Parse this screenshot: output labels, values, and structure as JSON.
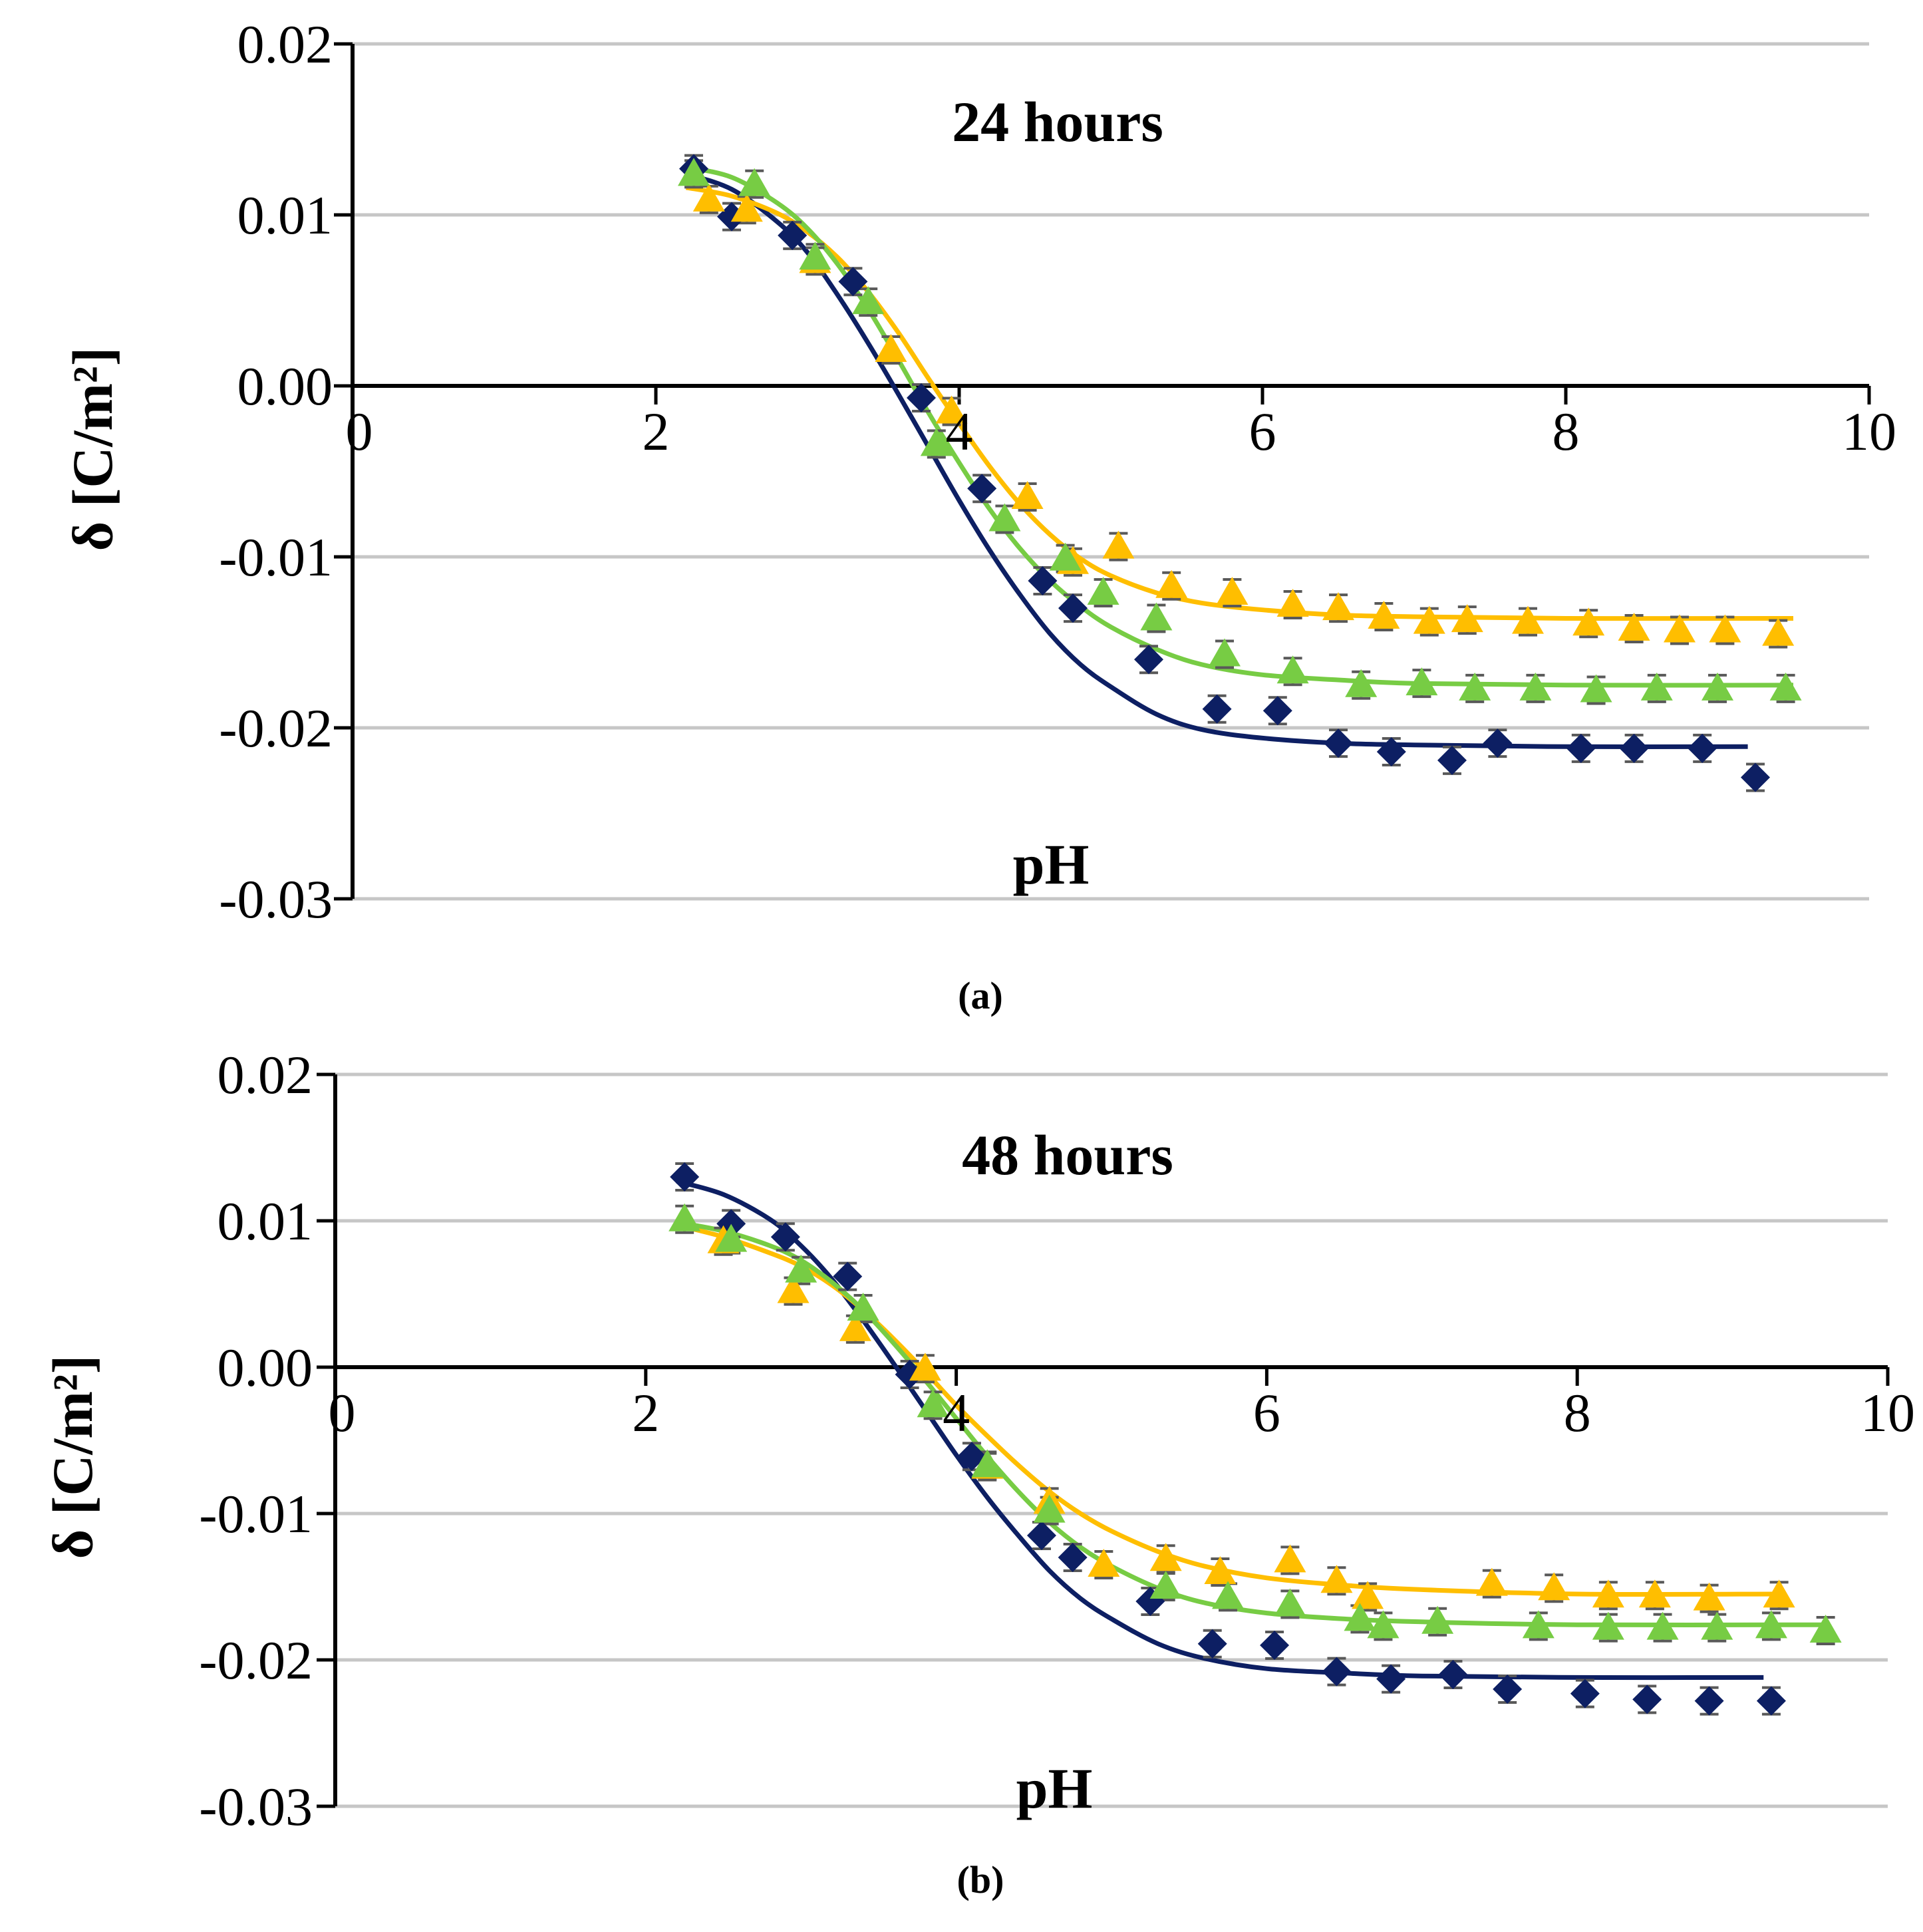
{
  "colors": {
    "series_navy": "#0d1f63",
    "series_yellow": "#ffbe00",
    "series_green": "#77cc44",
    "grid": "#c6c6c6",
    "axis": "#000000",
    "error_bar": "#595959"
  },
  "chart_data": [
    {
      "type": "scatter",
      "title": "24 hours",
      "caption": "(a)",
      "xlabel": "pH",
      "ylabel": "δ  [C/m²]",
      "xlim": [
        0,
        10
      ],
      "ylim": [
        -0.03,
        0.02
      ],
      "x_ticks": [
        0,
        2,
        4,
        6,
        8,
        10
      ],
      "x_tick_labels": [
        "0",
        "2",
        "4",
        "6",
        "8",
        "10"
      ],
      "y_ticks": [
        0.02,
        0.01,
        0,
        -0.01,
        -0.02,
        -0.03
      ],
      "y_tick_labels": [
        "0.02",
        "0.01",
        "0.00",
        "-0.01",
        "-0.02",
        "-0.03"
      ],
      "grid": true,
      "series": [
        {
          "name": "navy diamonds",
          "marker": "diamond",
          "color": "#0d1f63",
          "x": [
            2.25,
            2.5,
            2.9,
            3.3,
            3.75,
            4.15,
            4.55,
            4.75,
            5.25,
            5.7,
            6.1,
            6.5,
            6.85,
            7.25,
            7.55,
            8.1,
            8.45,
            8.9,
            9.25
          ],
          "y": [
            0.0127,
            0.0099,
            0.0088,
            0.0061,
            -0.0007,
            -0.006,
            -0.0114,
            -0.013,
            -0.016,
            -0.0189,
            -0.019,
            -0.0209,
            -0.0214,
            -0.0219,
            -0.0209,
            -0.0212,
            -0.0212,
            -0.0212,
            -0.0229
          ],
          "fit_x": [
            2.2,
            2.5,
            2.8,
            3.0,
            3.2,
            3.4,
            3.6,
            3.8,
            4.0,
            4.2,
            4.4,
            4.6,
            4.8,
            5.0,
            5.3,
            5.6,
            6.0,
            6.5,
            7.0,
            8.0,
            9.2
          ],
          "fit_y": [
            0.0124,
            0.0115,
            0.0096,
            0.0078,
            0.0053,
            0.0025,
            -0.0005,
            -0.0036,
            -0.0067,
            -0.0096,
            -0.0122,
            -0.0145,
            -0.0163,
            -0.0176,
            -0.0192,
            -0.0201,
            -0.0206,
            -0.0209,
            -0.021,
            -0.0211,
            -0.0211
          ]
        },
        {
          "name": "yellow triangles",
          "marker": "triangle",
          "color": "#ffbe00",
          "x": [
            2.35,
            2.6,
            3.05,
            3.55,
            3.95,
            4.45,
            4.75,
            5.05,
            5.4,
            5.8,
            6.2,
            6.5,
            6.8,
            7.1,
            7.35,
            7.75,
            8.15,
            8.45,
            8.75,
            9.05,
            9.4
          ],
          "y": [
            0.0109,
            0.0103,
            0.0073,
            0.0021,
            -0.0015,
            -0.0065,
            -0.0103,
            -0.0094,
            -0.0117,
            -0.0121,
            -0.0128,
            -0.013,
            -0.0135,
            -0.0138,
            -0.0137,
            -0.0138,
            -0.0139,
            -0.0142,
            -0.0143,
            -0.0143,
            -0.0145
          ],
          "fit_x": [
            2.2,
            2.5,
            2.8,
            3.0,
            3.2,
            3.4,
            3.6,
            3.8,
            4.0,
            4.2,
            4.4,
            4.6,
            4.8,
            5.0,
            5.3,
            5.6,
            6.0,
            6.5,
            7.0,
            8.0,
            9.5
          ],
          "fit_y": [
            0.0116,
            0.0111,
            0.0101,
            0.009,
            0.0075,
            0.0055,
            0.0031,
            0.0004,
            -0.0022,
            -0.0047,
            -0.0069,
            -0.0087,
            -0.0101,
            -0.0111,
            -0.0121,
            -0.0127,
            -0.0131,
            -0.0134,
            -0.0135,
            -0.0136,
            -0.0136
          ]
        },
        {
          "name": "green triangles",
          "marker": "triangle",
          "color": "#77cc44",
          "x": [
            2.25,
            2.65,
            3.05,
            3.4,
            3.85,
            4.3,
            4.7,
            4.95,
            5.3,
            5.75,
            6.2,
            6.65,
            7.05,
            7.4,
            7.8,
            8.2,
            8.6,
            9.0,
            9.45
          ],
          "y": [
            0.0124,
            0.0118,
            0.0075,
            0.0049,
            -0.0034,
            -0.0078,
            -0.0101,
            -0.0121,
            -0.0136,
            -0.0157,
            -0.0167,
            -0.0175,
            -0.0174,
            -0.0177,
            -0.0177,
            -0.0178,
            -0.0177,
            -0.0177,
            -0.0177
          ],
          "fit_x": [
            2.2,
            2.5,
            2.8,
            3.0,
            3.2,
            3.4,
            3.6,
            3.8,
            4.0,
            4.2,
            4.4,
            4.6,
            4.8,
            5.0,
            5.3,
            5.6,
            6.0,
            6.5,
            7.0,
            8.0,
            9.5
          ],
          "fit_y": [
            0.0128,
            0.0122,
            0.0107,
            0.0092,
            0.0071,
            0.0045,
            0.0015,
            -0.0016,
            -0.0045,
            -0.0072,
            -0.0095,
            -0.0114,
            -0.0129,
            -0.0141,
            -0.0154,
            -0.0163,
            -0.0169,
            -0.0172,
            -0.0174,
            -0.0175,
            -0.0175
          ]
        }
      ]
    },
    {
      "type": "scatter",
      "title": "48 hours",
      "caption": "(b)",
      "xlabel": "pH",
      "ylabel": "δ  [C/m²]",
      "xlim": [
        0,
        10
      ],
      "ylim": [
        -0.03,
        0.02
      ],
      "x_ticks": [
        0,
        2,
        4,
        6,
        8,
        10
      ],
      "x_tick_labels": [
        "0",
        "2",
        "4",
        "6",
        "8",
        "10"
      ],
      "y_ticks": [
        0.02,
        0.01,
        0,
        -0.01,
        -0.02,
        -0.03
      ],
      "y_tick_labels": [
        "0.02",
        "0.01",
        "0.00",
        "-0.01",
        "-0.02",
        "-0.03"
      ],
      "grid": true,
      "series": [
        {
          "name": "navy diamonds",
          "marker": "diamond",
          "color": "#0d1f63",
          "x": [
            2.25,
            2.55,
            2.9,
            3.3,
            3.7,
            4.1,
            4.55,
            4.75,
            5.25,
            5.65,
            6.05,
            6.45,
            6.8,
            7.2,
            7.55,
            8.05,
            8.45,
            8.85,
            9.25
          ],
          "y": [
            0.013,
            0.0098,
            0.0089,
            0.0062,
            -0.0005,
            -0.0061,
            -0.0115,
            -0.013,
            -0.016,
            -0.0189,
            -0.019,
            -0.0208,
            -0.0213,
            -0.021,
            -0.022,
            -0.0223,
            -0.0227,
            -0.0228,
            -0.0228
          ],
          "fit_x": [
            2.2,
            2.5,
            2.8,
            3.0,
            3.2,
            3.4,
            3.6,
            3.8,
            4.0,
            4.2,
            4.4,
            4.6,
            4.8,
            5.0,
            5.3,
            5.6,
            6.0,
            6.5,
            7.0,
            8.0,
            9.2
          ],
          "fit_y": [
            0.0127,
            0.0118,
            0.0101,
            0.0083,
            0.006,
            0.0032,
            0.0002,
            -0.0029,
            -0.006,
            -0.0089,
            -0.0115,
            -0.0139,
            -0.0158,
            -0.0172,
            -0.0189,
            -0.0199,
            -0.0206,
            -0.0209,
            -0.0211,
            -0.0212,
            -0.0212
          ]
        },
        {
          "name": "yellow triangles",
          "marker": "triangle",
          "color": "#ffbe00",
          "x": [
            2.5,
            2.95,
            3.35,
            3.8,
            4.2,
            4.6,
            4.95,
            5.35,
            5.7,
            6.15,
            6.45,
            6.65,
            7.45,
            7.85,
            8.2,
            8.5,
            8.85,
            9.3
          ],
          "y": [
            0.0086,
            0.0052,
            0.0026,
            -0.0001,
            -0.0068,
            -0.0092,
            -0.0135,
            -0.0131,
            -0.014,
            -0.0132,
            -0.0146,
            -0.0157,
            -0.0148,
            -0.0151,
            -0.0156,
            -0.0156,
            -0.0158,
            -0.0156
          ],
          "fit_x": [
            2.2,
            2.5,
            2.8,
            3.0,
            3.2,
            3.4,
            3.6,
            3.8,
            4.0,
            4.2,
            4.4,
            4.6,
            4.8,
            5.0,
            5.3,
            5.6,
            6.0,
            6.5,
            7.0,
            8.0,
            9.3
          ],
          "fit_y": [
            0.0097,
            0.0089,
            0.0078,
            0.0069,
            0.0056,
            0.0039,
            0.0019,
            -0.0003,
            -0.0026,
            -0.0047,
            -0.0067,
            -0.0085,
            -0.01,
            -0.0112,
            -0.0126,
            -0.0136,
            -0.0144,
            -0.0149,
            -0.0152,
            -0.0155,
            -0.0155
          ]
        },
        {
          "name": "green triangles",
          "marker": "triangle",
          "color": "#77cc44",
          "x": [
            2.25,
            2.55,
            3.0,
            3.4,
            3.85,
            4.2,
            4.6,
            5.35,
            5.75,
            6.15,
            6.6,
            6.75,
            7.1,
            7.75,
            8.2,
            8.55,
            8.9,
            9.25,
            9.6
          ],
          "y": [
            0.0101,
            0.0087,
            0.0066,
            0.004,
            -0.0026,
            -0.0067,
            -0.0098,
            -0.015,
            -0.0157,
            -0.0162,
            -0.0172,
            -0.0177,
            -0.0174,
            -0.0177,
            -0.0178,
            -0.0178,
            -0.0178,
            -0.0177,
            -0.018
          ],
          "fit_x": [
            2.2,
            2.5,
            2.8,
            3.0,
            3.2,
            3.4,
            3.6,
            3.8,
            4.0,
            4.2,
            4.4,
            4.6,
            4.8,
            5.0,
            5.3,
            5.6,
            6.0,
            6.5,
            7.0,
            8.0,
            9.6
          ],
          "fit_y": [
            0.0099,
            0.0093,
            0.0083,
            0.0073,
            0.0058,
            0.0039,
            0.0016,
            -0.0009,
            -0.0035,
            -0.0061,
            -0.0085,
            -0.0106,
            -0.0123,
            -0.0136,
            -0.0151,
            -0.0161,
            -0.0168,
            -0.0172,
            -0.0174,
            -0.0176,
            -0.0176
          ]
        }
      ]
    }
  ]
}
